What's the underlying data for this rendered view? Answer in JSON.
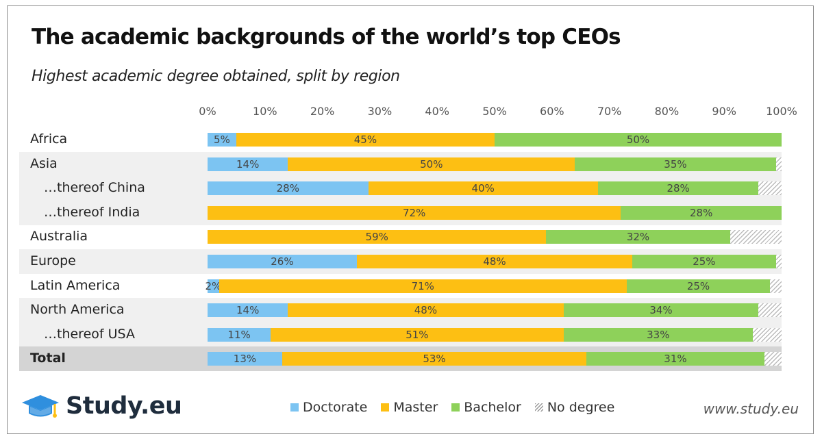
{
  "title": "The academic backgrounds of the world’s top CEOs",
  "subtitle": "Highest academic degree obtained, split by region",
  "colors": {
    "doctorate": "#7cc4f2",
    "master": "#fdbf13",
    "bachelor": "#8ed15a",
    "no_degree": "hatched",
    "row_shade": "#f0f0f0",
    "total_shade": "#d4d4d4"
  },
  "chart_data": {
    "type": "bar",
    "orientation": "horizontal",
    "stacked": true,
    "title": "The academic backgrounds of the world’s top CEOs",
    "subtitle": "Highest academic degree obtained, split by region",
    "xlim": [
      0,
      100
    ],
    "x_ticks": [
      "0%",
      "10%",
      "20%",
      "30%",
      "40%",
      "50%",
      "60%",
      "70%",
      "80%",
      "90%",
      "100%"
    ],
    "categories": [
      "Africa",
      "Asia",
      "…thereof China",
      "…thereof India",
      "Australia",
      "Europe",
      "Latin America",
      "North America",
      "…thereof USA",
      "Total"
    ],
    "series": [
      {
        "name": "Doctorate",
        "values": [
          5,
          14,
          28,
          0,
          0,
          26,
          2,
          14,
          11,
          13
        ]
      },
      {
        "name": "Master",
        "values": [
          45,
          50,
          40,
          72,
          59,
          48,
          71,
          48,
          51,
          53
        ]
      },
      {
        "name": "Bachelor",
        "values": [
          50,
          35,
          28,
          28,
          32,
          25,
          25,
          34,
          33,
          31
        ]
      },
      {
        "name": "No degree",
        "values": [
          0,
          1,
          4,
          0,
          9,
          1,
          2,
          4,
          5,
          3
        ]
      }
    ],
    "legend": [
      "Doctorate",
      "Master",
      "Bachelor",
      "No degree"
    ],
    "legend_position": "bottom"
  },
  "footer": {
    "brand": "Study.eu",
    "url": "www.study.eu"
  }
}
